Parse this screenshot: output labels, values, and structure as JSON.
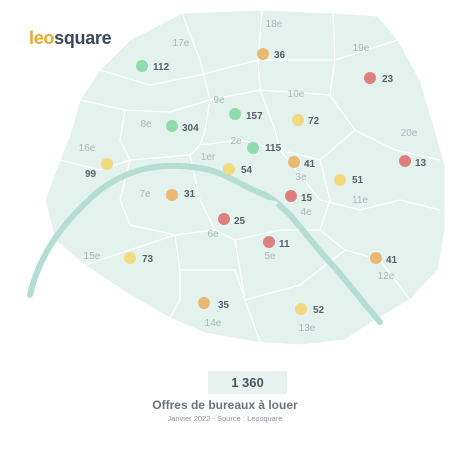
{
  "logo": {
    "part1": "leo",
    "part2": "square"
  },
  "total": "1 360",
  "title": "Offres de bureaux à louer",
  "caption": "Janvier 2022 - Source : Leosquare",
  "colors": {
    "map_fill": "#e4f2ee",
    "border": "#ffffff",
    "river": "#b5ddd4",
    "low": "#8fdbac",
    "mid": "#f3da7e",
    "mid_high": "#e9b871",
    "high": "#de7f7f"
  },
  "arrondissements": [
    {
      "name": "1er",
      "count": 54,
      "level": "mid"
    },
    {
      "name": "2e",
      "count": 115,
      "level": "low"
    },
    {
      "name": "3e",
      "count": 41,
      "level": "mid_high"
    },
    {
      "name": "4e",
      "count": 15,
      "level": "high"
    },
    {
      "name": "5e",
      "count": 11,
      "level": "high"
    },
    {
      "name": "6e",
      "count": 25,
      "level": "high"
    },
    {
      "name": "7e",
      "count": 31,
      "level": "mid_high"
    },
    {
      "name": "8e",
      "count": 304,
      "level": "low"
    },
    {
      "name": "9e",
      "count": 157,
      "level": "low"
    },
    {
      "name": "10e",
      "count": 72,
      "level": "mid"
    },
    {
      "name": "11e",
      "count": 51,
      "level": "mid"
    },
    {
      "name": "12e",
      "count": 41,
      "level": "mid_high"
    },
    {
      "name": "13e",
      "count": 52,
      "level": "mid"
    },
    {
      "name": "14e",
      "count": 35,
      "level": "mid_high"
    },
    {
      "name": "15e",
      "count": 73,
      "level": "mid"
    },
    {
      "name": "16e",
      "count": 99,
      "level": "mid"
    },
    {
      "name": "17e",
      "count": 112,
      "level": "low"
    },
    {
      "name": "18e",
      "count": 36,
      "level": "mid_high"
    },
    {
      "name": "19e",
      "count": 23,
      "level": "high"
    },
    {
      "name": "20e",
      "count": 13,
      "level": "high"
    }
  ]
}
